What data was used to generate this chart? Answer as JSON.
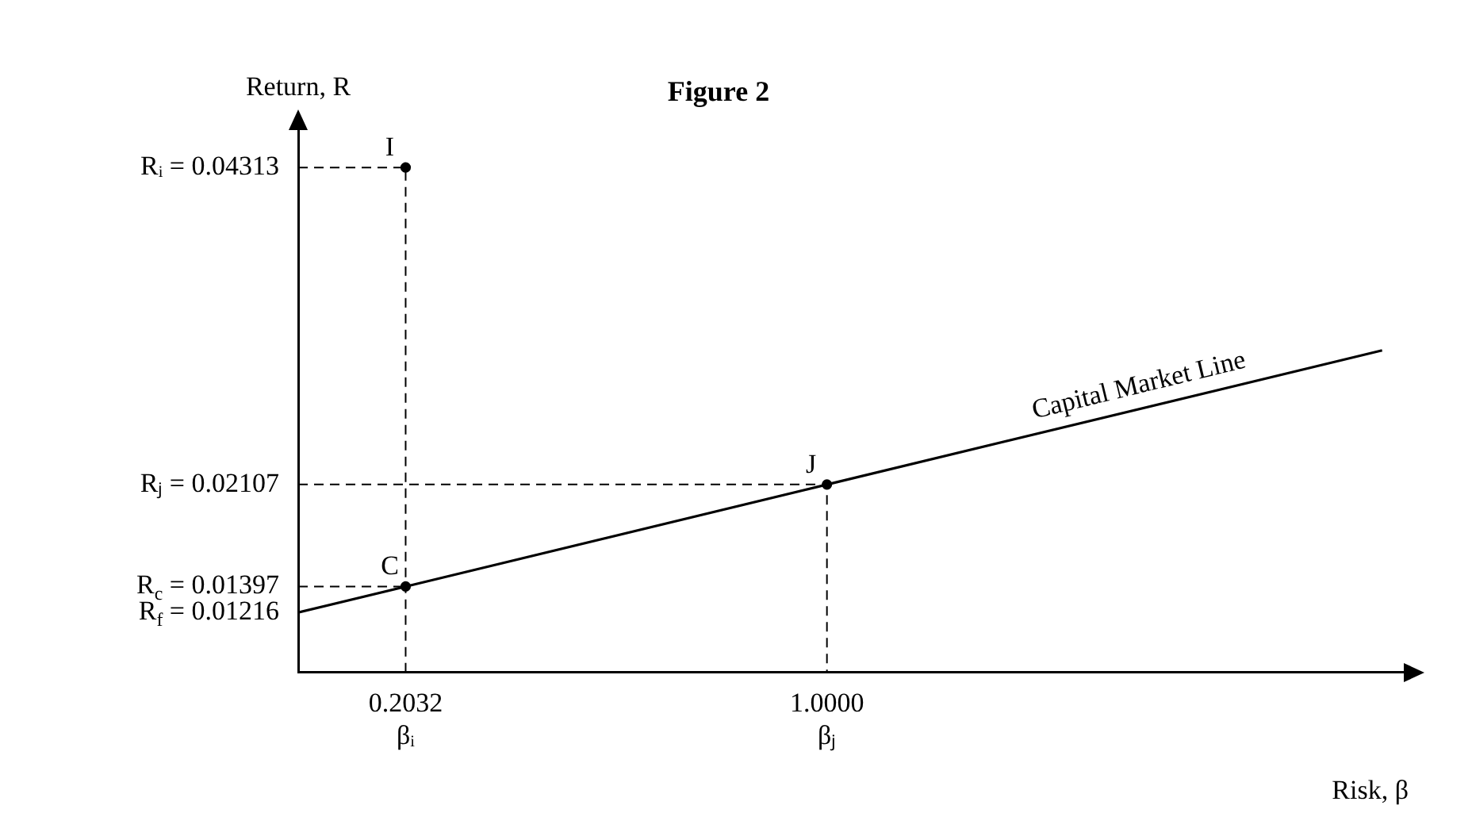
{
  "chart_data": {
    "type": "line",
    "title": "Figure 2",
    "xlabel": "Risk, β",
    "ylabel": "Return, R",
    "xlim": [
      0,
      2.1
    ],
    "ylim": [
      0.008,
      0.046
    ],
    "xticks": [
      {
        "value": 0.2032,
        "label": "0.2032\nβᵢ"
      },
      {
        "value": 1,
        "label": "1.0000\nβⱼ"
      }
    ],
    "yticks": [
      {
        "value": 0.01216,
        "label": "R$_{f}$ = 0.01216"
      },
      {
        "value": 0.01397,
        "label": "R$_{c}$ = 0.01397"
      },
      {
        "value": 0.02107,
        "label": "Rⱼ = 0.02107"
      },
      {
        "value": 0.04313,
        "label": "Rᵢ = 0.04313"
      }
    ],
    "grid": false,
    "legend": false,
    "series": [
      {
        "color": "#000000",
        "line_style": "solid",
        "marker": "none",
        "x": [
          0,
          0.2032,
          1,
          2.05
        ],
        "values": [
          0.01216,
          0.01397,
          0.02107,
          0.0304
        ]
      },
      {
        "type": "line",
        "color": "#000000",
        "line_style": "dashed",
        "marker": "none",
        "x": [
          0,
          0.2032,
          0.2032
        ],
        "values": [
          0.04313,
          0.04313,
          0.008
        ]
      },
      {
        "type": "line",
        "color": "#000000",
        "line_style": "dashed",
        "marker": "none",
        "x": [
          0,
          0.2032
        ],
        "values": [
          0.01397,
          0.01397
        ]
      },
      {
        "type": "line",
        "color": "#000000",
        "line_style": "dashed",
        "marker": "none",
        "x": [
          0,
          1,
          1
        ],
        "values": [
          0.02107,
          0.02107,
          0.008
        ]
      },
      {
        "type": "scatter",
        "color": "#000000",
        "marker": "circle",
        "x": [
          0.2032,
          0.2032,
          1
        ],
        "values": [
          0.04313,
          0.01397,
          0.02107
        ]
      }
    ],
    "annotations": [
      {
        "text": "I",
        "x": 0.2032,
        "y": 0.04313
      },
      {
        "text": "C",
        "x": 0.2032,
        "y": 0.01397
      },
      {
        "text": "J",
        "x": 1,
        "y": 0.02107
      },
      {
        "text": "Capital Market Line",
        "x": 1.6,
        "y": 0.02642
      }
    ]
  }
}
